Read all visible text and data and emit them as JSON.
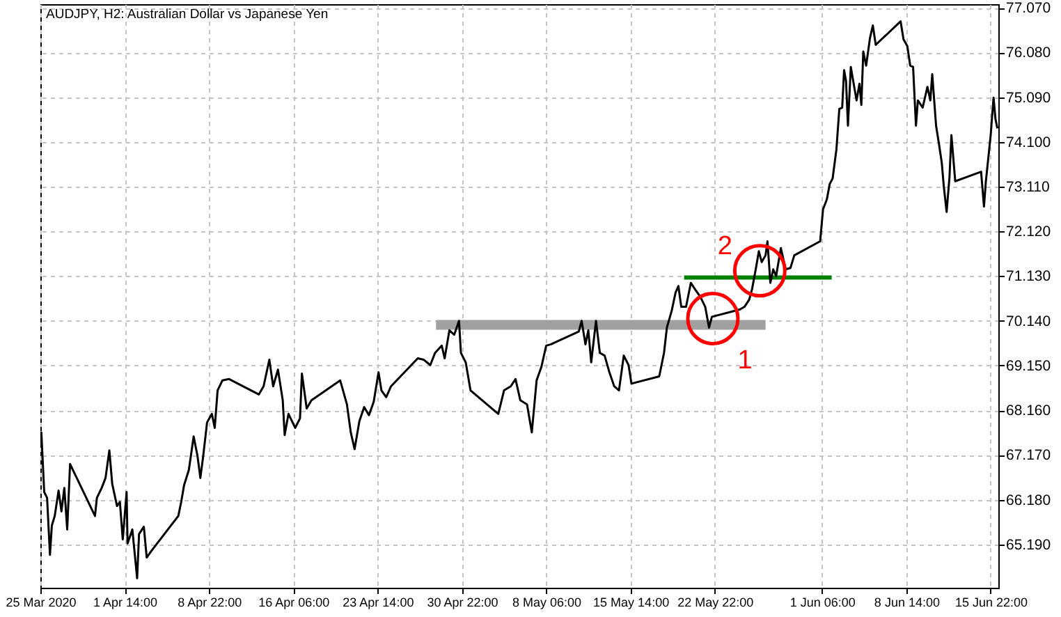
{
  "chart_data": {
    "type": "line",
    "title": "AUDJPY, H2: Australian Dollar vs Japanese Yen",
    "x": [
      "2020-03-25T06:00",
      "2020-03-25T08:00",
      "2020-03-25T14:00",
      "2020-03-25T20:00",
      "2020-03-26T02:00",
      "2020-03-26T06:00",
      "2020-03-26T12:00",
      "2020-03-26T20:00",
      "2020-03-27T02:00",
      "2020-03-27T08:00",
      "2020-03-27T14:00",
      "2020-03-27T20:00",
      "2020-03-30T00:00",
      "2020-03-30T04:00",
      "2020-03-30T14:00",
      "2020-03-30T22:00",
      "2020-03-31T06:00",
      "2020-03-31T12:00",
      "2020-03-31T22:00",
      "2020-04-01T04:00",
      "2020-04-01T10:00",
      "2020-04-01T18:00",
      "2020-04-01T20:00",
      "2020-04-02T06:00",
      "2020-04-02T16:00",
      "2020-04-02T20:00",
      "2020-04-03T06:00",
      "2020-04-03T12:00",
      "2020-04-03T22:00",
      "2020-04-06T06:00",
      "2020-04-06T12:00",
      "2020-04-06T18:00",
      "2020-04-07T04:00",
      "2020-04-07T14:00",
      "2020-04-07T22:00",
      "2020-04-08T04:00",
      "2020-04-08T10:00",
      "2020-04-08T18:00",
      "2020-04-09T04:00",
      "2020-04-09T10:00",
      "2020-04-09T16:00",
      "2020-04-10T02:00",
      "2020-04-10T16:00",
      "2020-04-13T06:00",
      "2020-04-13T16:00",
      "2020-04-14T04:00",
      "2020-04-14T12:00",
      "2020-04-14T22:00",
      "2020-04-15T08:00",
      "2020-04-15T12:00",
      "2020-04-15T20:00",
      "2020-04-16T10:00",
      "2020-04-16T20:00",
      "2020-04-17T00:00",
      "2020-04-17T10:00",
      "2020-04-17T20:00",
      "2020-04-20T08:00",
      "2020-04-20T22:00",
      "2020-04-21T06:00",
      "2020-04-21T14:00",
      "2020-04-22T00:00",
      "2020-04-22T10:00",
      "2020-04-22T20:00",
      "2020-04-23T06:00",
      "2020-04-23T16:00",
      "2020-04-23T22:00",
      "2020-04-24T08:00",
      "2020-04-24T18:00",
      "2020-04-27T02:00",
      "2020-04-27T14:00",
      "2020-04-28T04:00",
      "2020-04-28T14:00",
      "2020-04-29T04:00",
      "2020-04-29T10:00",
      "2020-04-29T20:00",
      "2020-04-30T06:00",
      "2020-04-30T16:00",
      "2020-04-30T20:00",
      "2020-05-01T06:00",
      "2020-05-01T16:00",
      "2020-05-04T02:00",
      "2020-05-04T14:00",
      "2020-05-05T04:00",
      "2020-05-05T14:00",
      "2020-05-06T00:00",
      "2020-05-06T14:00",
      "2020-05-07T00:00",
      "2020-05-07T10:00",
      "2020-05-07T20:00",
      "2020-05-08T06:00",
      "2020-05-08T16:00",
      "2020-05-11T02:00",
      "2020-05-11T08:00",
      "2020-05-11T16:00",
      "2020-05-11T22:00",
      "2020-05-12T04:00",
      "2020-05-12T14:00",
      "2020-05-12T22:00",
      "2020-05-13T08:00",
      "2020-05-13T18:00",
      "2020-05-14T04:00",
      "2020-05-14T14:00",
      "2020-05-15T00:00",
      "2020-05-15T10:00",
      "2020-05-15T16:00",
      "2020-05-18T02:00",
      "2020-05-18T12:00",
      "2020-05-18T18:00",
      "2020-05-19T04:00",
      "2020-05-19T12:00",
      "2020-05-19T18:00",
      "2020-05-20T00:00",
      "2020-05-20T10:00",
      "2020-05-20T20:00",
      "2020-05-21T06:00",
      "2020-05-21T16:00",
      "2020-05-22T02:00",
      "2020-05-22T10:00",
      "2020-05-22T16:00",
      "2020-05-25T02:00",
      "2020-05-25T12:00",
      "2020-05-25T22:00",
      "2020-05-26T04:00",
      "2020-05-26T12:00",
      "2020-05-26T18:00",
      "2020-05-27T00:00",
      "2020-05-27T08:00",
      "2020-05-27T12:00",
      "2020-05-27T18:00",
      "2020-05-28T00:00",
      "2020-05-28T06:00",
      "2020-05-28T16:00",
      "2020-05-29T02:00",
      "2020-05-29T12:00",
      "2020-05-29T20:00",
      "2020-06-01T02:00",
      "2020-06-01T08:00",
      "2020-06-01T16:00",
      "2020-06-01T22:00",
      "2020-06-02T04:00",
      "2020-06-02T12:00",
      "2020-06-02T18:00",
      "2020-06-03T00:00",
      "2020-06-03T04:00",
      "2020-06-03T08:00",
      "2020-06-03T12:00",
      "2020-06-03T18:00",
      "2020-06-04T00:00",
      "2020-06-04T06:00",
      "2020-06-04T12:00",
      "2020-06-04T16:00",
      "2020-06-04T20:00",
      "2020-06-05T02:00",
      "2020-06-05T10:00",
      "2020-06-05T16:00",
      "2020-06-05T22:00",
      "2020-06-08T02:00",
      "2020-06-08T08:00",
      "2020-06-08T16:00",
      "2020-06-08T22:00",
      "2020-06-09T04:00",
      "2020-06-09T10:00",
      "2020-06-09T14:00",
      "2020-06-10T00:00",
      "2020-06-10T10:00",
      "2020-06-10T16:00",
      "2020-06-10T20:00",
      "2020-06-11T04:00",
      "2020-06-11T10:00",
      "2020-06-11T16:00",
      "2020-06-11T20:00",
      "2020-06-12T02:00",
      "2020-06-12T08:00",
      "2020-06-12T12:00",
      "2020-06-12T20:00",
      "2020-06-15T02:00",
      "2020-06-15T08:00",
      "2020-06-15T12:00",
      "2020-06-15T18:00",
      "2020-06-15T22:00",
      "2020-06-16T04:00",
      "2020-06-16T08:00",
      "2020-06-16T12:00"
    ],
    "series": [
      {
        "color": "#a0a0a0",
        "x": [
          "2020-04-28T16:00",
          "2020-05-27T08:00"
        ],
        "values": [
          70.05,
          70.05
        ]
      },
      {
        "color": "#008000",
        "x": [
          "2020-05-20T06:00",
          "2020-06-02T02:00"
        ],
        "values": [
          71.1,
          71.1
        ]
      },
      {
        "color": "#000000",
        "values": [
          67.43,
          67.67,
          66.35,
          66.22,
          64.96,
          65.61,
          65.82,
          66.38,
          65.92,
          66.44,
          65.52,
          66.97,
          65.82,
          66.22,
          66.44,
          66.66,
          67.27,
          66.53,
          66.04,
          66.13,
          65.3,
          66.35,
          65.21,
          65.52,
          64.44,
          65.42,
          65.58,
          64.9,
          65.05,
          65.82,
          66.13,
          66.5,
          66.84,
          67.58,
          67.15,
          66.66,
          67.15,
          67.89,
          68.08,
          67.77,
          68.6,
          68.82,
          68.85,
          68.51,
          68.69,
          69.28,
          68.69,
          69.06,
          68.38,
          67.61,
          68.08,
          67.77,
          67.98,
          68.97,
          68.2,
          68.38,
          68.82,
          68.29,
          67.67,
          67.3,
          67.92,
          68.23,
          68.05,
          68.35,
          69.0,
          68.6,
          68.45,
          68.69,
          69.31,
          69.28,
          69.16,
          69.43,
          69.59,
          69.31,
          69.93,
          69.83,
          70.14,
          69.43,
          69.22,
          68.6,
          68.08,
          68.6,
          68.69,
          68.85,
          68.38,
          68.29,
          67.67,
          68.82,
          69.12,
          69.59,
          69.62,
          69.9,
          70.14,
          69.62,
          69.93,
          69.22,
          70.14,
          69.43,
          69.37,
          69.0,
          68.69,
          68.6,
          69.37,
          69.16,
          68.75,
          68.91,
          69.43,
          69.99,
          70.36,
          70.76,
          70.91,
          70.45,
          70.45,
          70.98,
          70.82,
          70.67,
          70.45,
          69.99,
          70.23,
          70.39,
          70.45,
          70.61,
          70.85,
          71.31,
          71.68,
          71.44,
          71.59,
          71.9,
          70.98,
          71.28,
          71.13,
          71.75,
          71.28,
          71.31,
          71.59,
          71.9,
          72.61,
          72.83,
          73.17,
          73.29,
          73.94,
          74.83,
          74.86,
          75.69,
          75.45,
          74.46,
          75.76,
          75.39,
          75.02,
          75.39,
          74.92,
          76.1,
          75.79,
          76.4,
          76.68,
          76.25,
          76.77,
          76.37,
          76.22,
          75.79,
          75.76,
          74.46,
          75.02,
          74.86,
          75.32,
          75.02,
          75.6,
          74.46,
          74.06,
          73.63,
          73.13,
          72.55,
          73.32,
          74.25,
          73.23,
          73.44,
          72.67,
          73.23,
          73.84,
          74.25,
          75.08,
          74.61,
          74.4
        ]
      }
    ],
    "xlim": [
      "2020-03-25T06:00",
      "2020-06-16T14:00"
    ],
    "xticks": [
      {
        "value": "2020-03-25T06:00",
        "label": "25 Mar 2020"
      },
      {
        "value": "2020-04-01T14:00",
        "label": "1 Apr 14:00"
      },
      {
        "value": "2020-04-08T22:00",
        "label": "8 Apr 22:00"
      },
      {
        "value": "2020-04-16T06:00",
        "label": "16 Apr 06:00"
      },
      {
        "value": "2020-04-23T14:00",
        "label": "23 Apr 14:00"
      },
      {
        "value": "2020-04-30T22:00",
        "label": "30 Apr 22:00"
      },
      {
        "value": "2020-05-08T06:00",
        "label": "8 May 06:00"
      },
      {
        "value": "2020-05-15T14:00",
        "label": "15 May 14:00"
      },
      {
        "value": "2020-05-22T22:00",
        "label": "22 May 22:00"
      },
      {
        "value": "2020-06-01T06:00",
        "label": "1 Jun 06:00"
      },
      {
        "value": "2020-06-08T14:00",
        "label": "8 Jun 14:00"
      },
      {
        "value": "2020-06-15T22:00",
        "label": "15 Jun 22:00"
      }
    ],
    "ylim": [
      64.23,
      77.15
    ],
    "yticks": [
      {
        "value": 65.19,
        "label": "65.190"
      },
      {
        "value": 66.18,
        "label": "66.180"
      },
      {
        "value": 67.17,
        "label": "67.170"
      },
      {
        "value": 68.16,
        "label": "68.160"
      },
      {
        "value": 69.15,
        "label": "69.150"
      },
      {
        "value": 70.14,
        "label": "70.140"
      },
      {
        "value": 71.13,
        "label": "71.130"
      },
      {
        "value": 72.12,
        "label": "72.120"
      },
      {
        "value": 73.11,
        "label": "73.110"
      },
      {
        "value": 74.1,
        "label": "74.100"
      },
      {
        "value": 75.09,
        "label": "75.090"
      },
      {
        "value": 76.08,
        "label": "76.080"
      },
      {
        "value": 77.07,
        "label": "77.070"
      }
    ],
    "grid": true,
    "annotations": [
      {
        "text": "1",
        "x": "2020-05-22T18:00",
        "y": 70.19
      },
      {
        "text": "2",
        "x": "2020-05-26T20:00",
        "y": 71.25
      }
    ]
  }
}
